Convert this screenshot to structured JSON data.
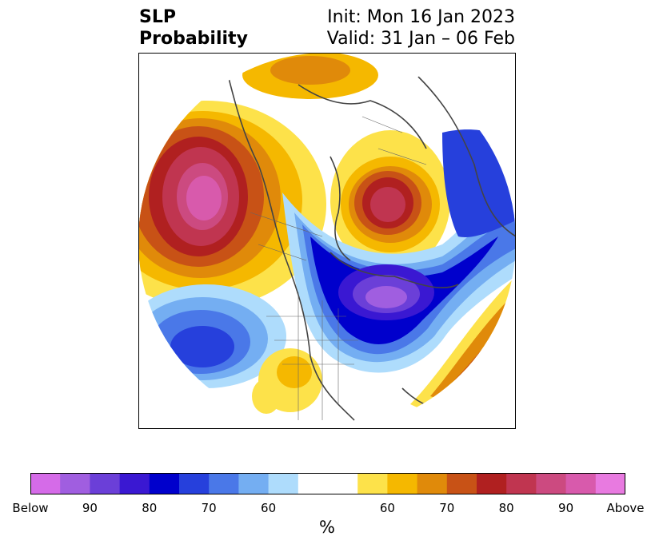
{
  "title": {
    "left_line1": "SLP",
    "left_line2": "Probability",
    "right_line1": "Init: Mon 16 Jan 2023",
    "right_line2": "Valid: 31 Jan – 06 Feb"
  },
  "colorbar": {
    "label": "%",
    "below_colors": [
      "#d56be8",
      "#a05ee0",
      "#6b3fd8",
      "#3a18d2",
      "#0000cc",
      "#2640dc",
      "#4a78e8",
      "#74aef2",
      "#aedcfc"
    ],
    "neutral_color": "#ffffff",
    "above_colors": [
      "#fde24a",
      "#f5b800",
      "#e08a0a",
      "#c85216",
      "#b02020",
      "#c03550",
      "#cc4a80",
      "#d85aac",
      "#e87ae0"
    ],
    "tick_labels": [
      "Below",
      "90",
      "80",
      "70",
      "60",
      "60",
      "70",
      "80",
      "90",
      "Above"
    ]
  },
  "map": {
    "projection": "north-polar-stereographic",
    "anomalies": [
      {
        "name": "north-pacific-above",
        "sign": "above",
        "peak_percent": 95
      },
      {
        "name": "arctic-siberia-above",
        "sign": "above",
        "peak_percent": 85
      },
      {
        "name": "canada-greenland-below",
        "sign": "below",
        "peak_percent": 90
      },
      {
        "name": "east-pacific-below",
        "sign": "below",
        "peak_percent": 75
      },
      {
        "name": "europe-below",
        "sign": "below",
        "peak_percent": 75
      },
      {
        "name": "north-atlantic-above",
        "sign": "above",
        "peak_percent": 80
      },
      {
        "name": "southern-us-above",
        "sign": "above",
        "peak_percent": 65
      }
    ]
  }
}
